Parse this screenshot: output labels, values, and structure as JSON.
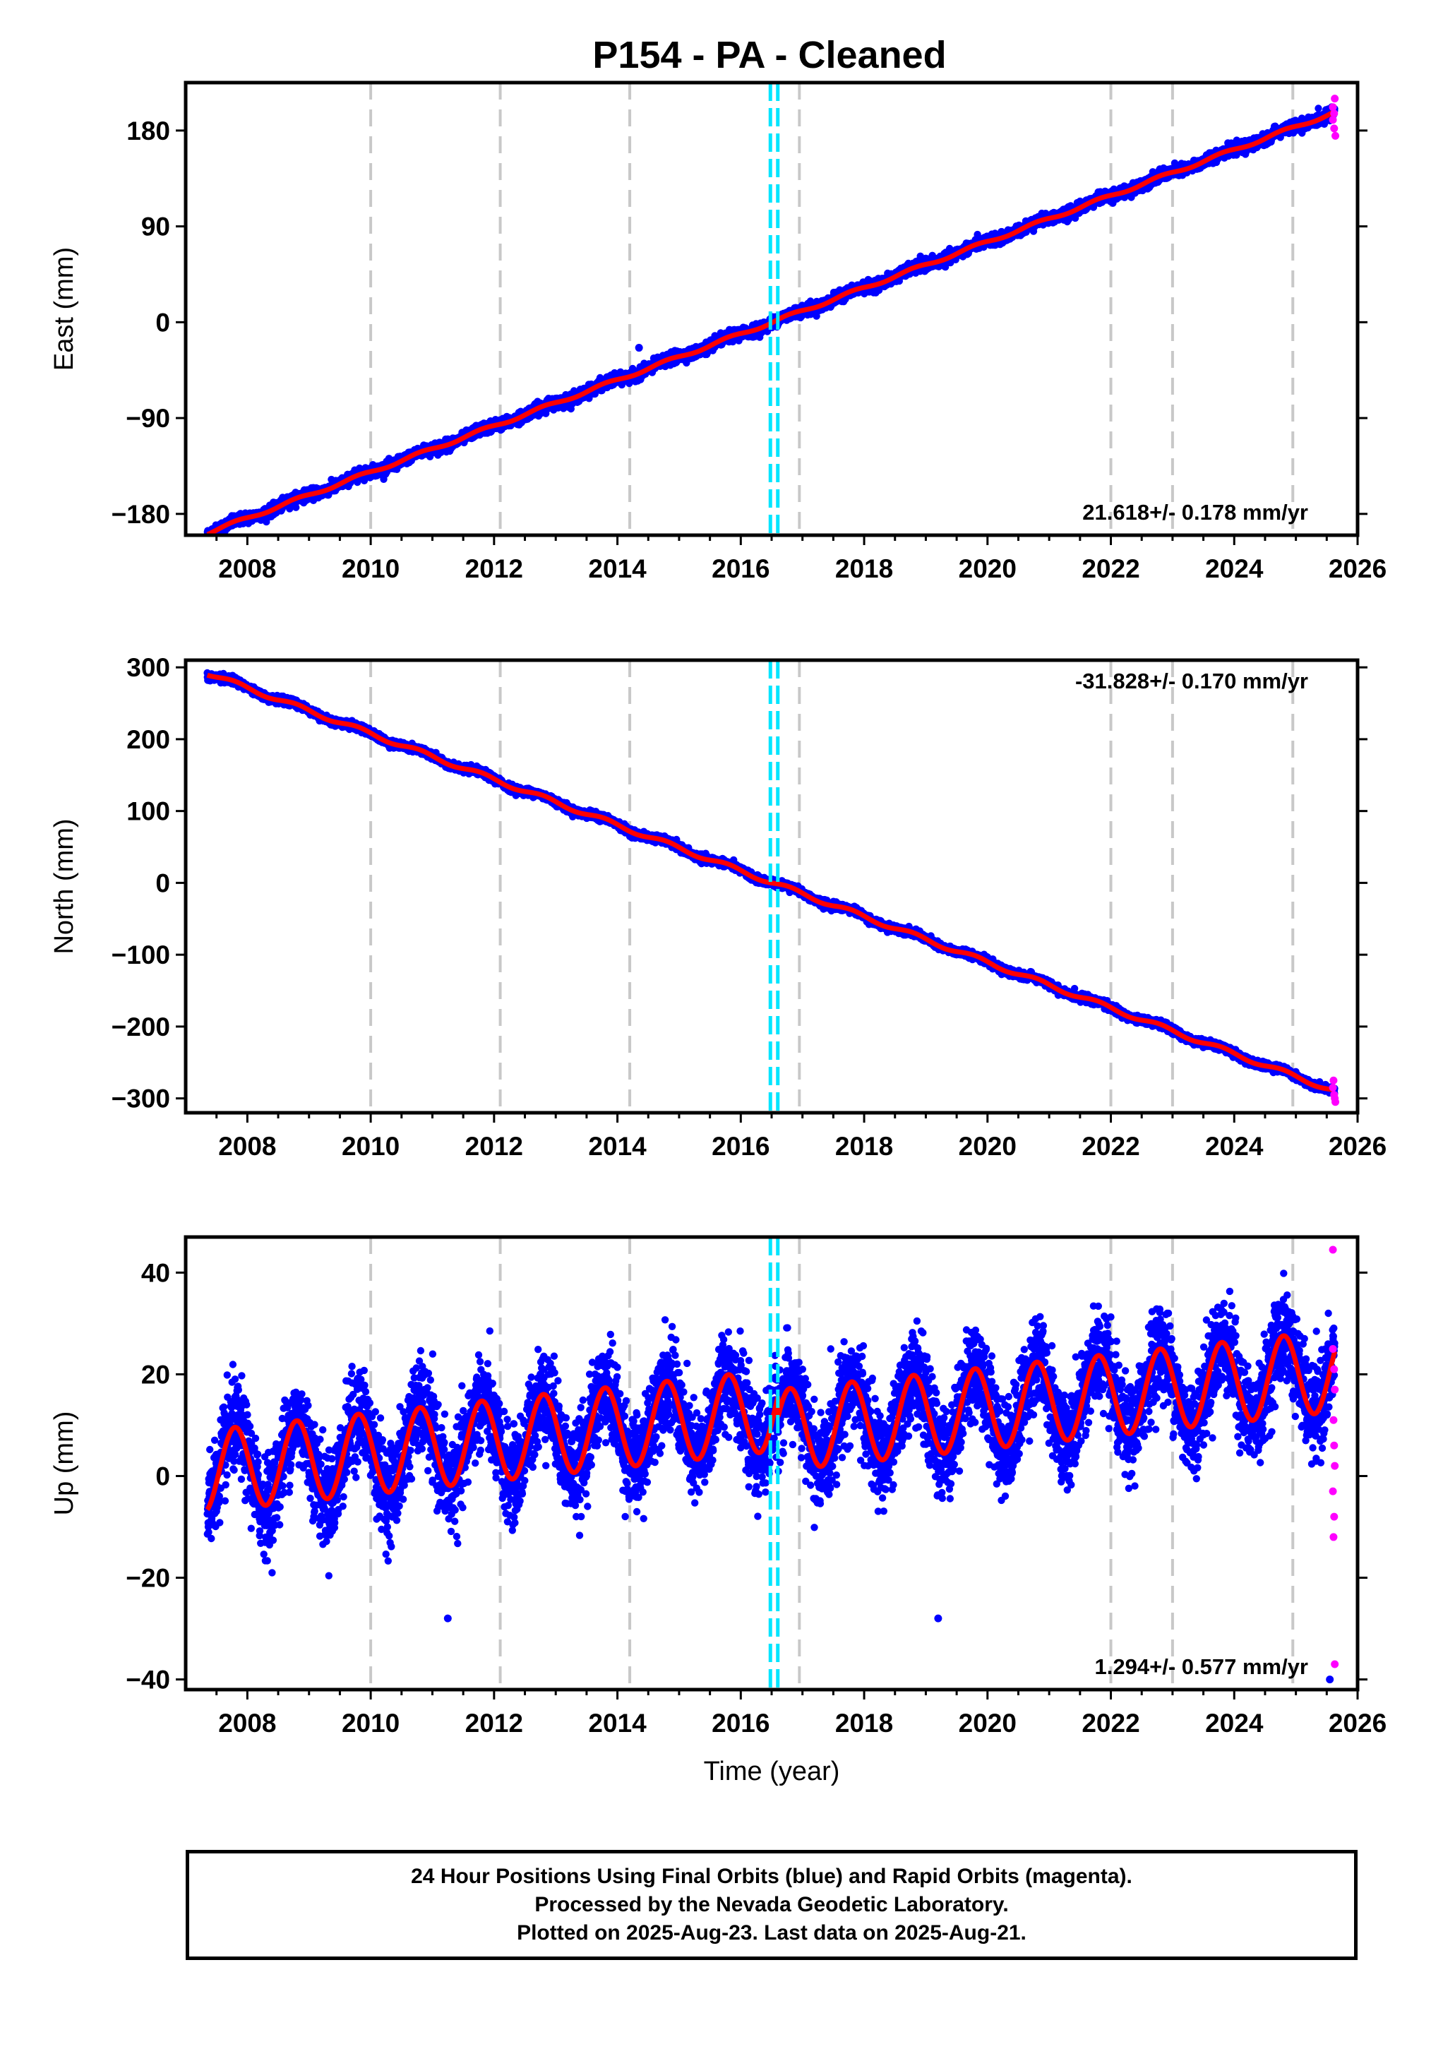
{
  "title": "P154  - PA - Cleaned",
  "colors": {
    "final": "#0000ff",
    "rapid": "#ff00ff",
    "model": "#ff0000",
    "event": "#00e5ff",
    "dashed": "#c8c8c8"
  },
  "chart_data": [
    {
      "type": "scatter",
      "ylabel": "East (mm)",
      "xlabel": "",
      "xlim": [
        2007.0,
        2026.0
      ],
      "ylim": [
        -200,
        225
      ],
      "yticks": [
        "180",
        "90",
        "0",
        "−90",
        "−180"
      ],
      "ytick_values": [
        180,
        90,
        0,
        -90,
        -180
      ],
      "xticks": [
        "2008",
        "2010",
        "2012",
        "2014",
        "2016",
        "2018",
        "2020",
        "2022",
        "2024",
        "2026"
      ],
      "xtick_values": [
        2008,
        2010,
        2012,
        2014,
        2016,
        2018,
        2020,
        2022,
        2024,
        2026
      ],
      "rate_label": "21.618+/- 0.178 mm/yr",
      "rate_position": "bottom-right",
      "model": {
        "start": 2007.35,
        "end": 2025.63,
        "intercept": -198,
        "rate": 21.618,
        "annual_amp": 1.5,
        "scatter": 2.5
      },
      "outliers": [
        {
          "x": 2014.35,
          "y": -24
        }
      ],
      "rapid_points": [
        {
          "x": 2025.6,
          "y": 190
        },
        {
          "x": 2025.62,
          "y": 196
        },
        {
          "x": 2025.63,
          "y": 210
        },
        {
          "x": 2025.62,
          "y": 182
        },
        {
          "x": 2025.64,
          "y": 175
        },
        {
          "x": 2025.6,
          "y": 202
        }
      ]
    },
    {
      "type": "scatter",
      "ylabel": "North (mm)",
      "xlabel": "",
      "xlim": [
        2007.0,
        2026.0
      ],
      "ylim": [
        -320,
        310
      ],
      "yticks": [
        "300",
        "200",
        "100",
        "0",
        "−100",
        "−200",
        "−300"
      ],
      "ytick_values": [
        300,
        200,
        100,
        0,
        -100,
        -200,
        -300
      ],
      "xticks": [
        "2008",
        "2010",
        "2012",
        "2014",
        "2016",
        "2018",
        "2020",
        "2022",
        "2024",
        "2026"
      ],
      "xtick_values": [
        2008,
        2010,
        2012,
        2014,
        2016,
        2018,
        2020,
        2022,
        2024,
        2026
      ],
      "rate_label": "-31.828+/- 0.170 mm/yr",
      "rate_position": "top-right",
      "model": {
        "start": 2007.35,
        "end": 2025.63,
        "intercept": 292,
        "rate": -31.828,
        "annual_amp": 3,
        "scatter": 2.5
      },
      "outliers": [],
      "rapid_points": [
        {
          "x": 2025.6,
          "y": -285
        },
        {
          "x": 2025.62,
          "y": -295
        },
        {
          "x": 2025.63,
          "y": -300
        },
        {
          "x": 2025.61,
          "y": -275
        },
        {
          "x": 2025.64,
          "y": -305
        }
      ]
    },
    {
      "type": "scatter",
      "ylabel": "Up (mm)",
      "xlabel": "Time (year)",
      "xlim": [
        2007.0,
        2026.0
      ],
      "ylim": [
        -42,
        47
      ],
      "yticks": [
        "40",
        "20",
        "0",
        "−20",
        "−40"
      ],
      "ytick_values": [
        40,
        20,
        0,
        -20,
        -40
      ],
      "xticks": [
        "2008",
        "2010",
        "2012",
        "2014",
        "2016",
        "2018",
        "2020",
        "2022",
        "2024",
        "2026"
      ],
      "xtick_values": [
        2008,
        2010,
        2012,
        2014,
        2016,
        2018,
        2020,
        2022,
        2024,
        2026
      ],
      "rate_label": "1.294+/- 0.577 mm/yr",
      "rate_position": "bottom-right",
      "model": {
        "start": 2007.35,
        "end": 2025.63,
        "intercept": 1,
        "rate": 1.294,
        "annual_amp": 8,
        "scatter": 4.5
      },
      "offset_after_2016_6": -4,
      "outliers": [
        {
          "x": 2011.25,
          "y": -28
        },
        {
          "x": 2019.2,
          "y": -28
        },
        {
          "x": 2025.55,
          "y": -40
        }
      ],
      "rapid_points": [
        {
          "x": 2025.6,
          "y": 44.5
        },
        {
          "x": 2025.6,
          "y": 25
        },
        {
          "x": 2025.62,
          "y": 21
        },
        {
          "x": 2025.63,
          "y": 17
        },
        {
          "x": 2025.61,
          "y": 11
        },
        {
          "x": 2025.62,
          "y": 6
        },
        {
          "x": 2025.63,
          "y": 2
        },
        {
          "x": 2025.6,
          "y": -3
        },
        {
          "x": 2025.62,
          "y": -8
        },
        {
          "x": 2025.61,
          "y": -12
        },
        {
          "x": 2025.63,
          "y": -37
        }
      ]
    }
  ],
  "dashed_lines": [
    2010.0,
    2012.1,
    2014.2,
    2016.95,
    2022.0,
    2023.0,
    2024.95
  ],
  "event_lines": [
    2016.48,
    2016.6
  ],
  "footer": {
    "line1": "24 Hour Positions Using Final Orbits (blue) and Rapid Orbits (magenta).",
    "line2": "Processed by the Nevada Geodetic Laboratory.",
    "line3": "Plotted on 2025-Aug-23. Last data on 2025-Aug-21."
  }
}
